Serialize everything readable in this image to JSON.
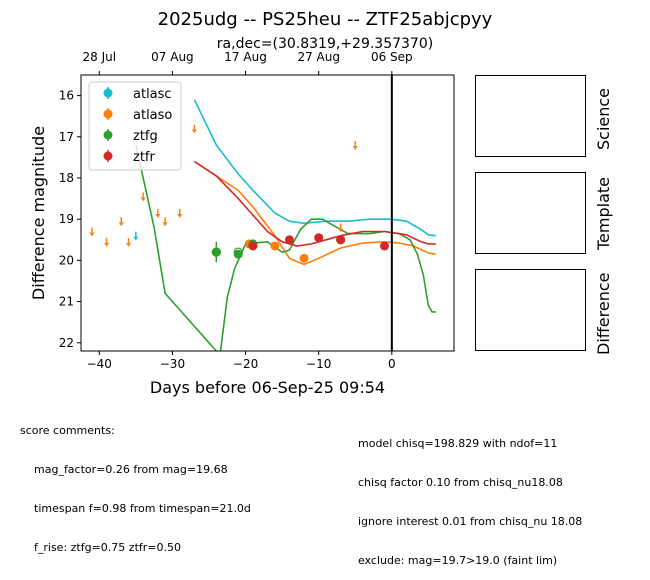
{
  "chart_data": {
    "type": "scatter",
    "title": "2025udg -- PS25heu -- ZTF25abjcpyy",
    "subtitle": "ra,dec=(30.8319,+29.357370)",
    "xlabel": "Days before 06-Sep-25 09:54",
    "ylabel": "Difference magnitude",
    "xlim": [
      -42.5,
      8.5
    ],
    "ylim": [
      22.2,
      15.5
    ],
    "y_inverted": true,
    "xticks": [
      -40,
      -30,
      -20,
      -10,
      0
    ],
    "xtick_labels": [
      "−40",
      "−30",
      "−20",
      "−10",
      "0"
    ],
    "yticks": [
      16,
      17,
      18,
      19,
      20,
      21,
      22
    ],
    "top_axis_ticks": [
      -40,
      -30,
      -20,
      -10,
      0
    ],
    "top_axis_labels": [
      "28 Jul",
      "07 Aug",
      "17 Aug",
      "27 Aug",
      "06 Sep"
    ],
    "vline_x": 0,
    "legend_position": "upper-left",
    "legend": [
      {
        "name": "atlasc",
        "color": "#17becf"
      },
      {
        "name": "atlaso",
        "color": "#ff7f0e"
      },
      {
        "name": "ztfg",
        "color": "#2ca02c"
      },
      {
        "name": "ztfr",
        "color": "#d62728"
      }
    ],
    "series": [
      {
        "name": "atlasc",
        "color": "#17becf",
        "points": [],
        "upper_limits": [
          [
            -35,
            19.4
          ]
        ],
        "model": [
          [
            -27,
            16.1
          ],
          [
            -24,
            17.2
          ],
          [
            -21,
            17.9
          ],
          [
            -19,
            18.3
          ],
          [
            -16,
            18.85
          ],
          [
            -14,
            19.05
          ],
          [
            -12,
            19.1
          ],
          [
            -9,
            19.05
          ],
          [
            -6,
            19.05
          ],
          [
            -3,
            19.0
          ],
          [
            0,
            19.0
          ],
          [
            2,
            19.05
          ],
          [
            4,
            19.25
          ],
          [
            5,
            19.38
          ],
          [
            6,
            19.4
          ]
        ]
      },
      {
        "name": "atlaso",
        "color": "#ff7f0e",
        "points": [
          [
            -19.5,
            19.6,
            0.05
          ],
          [
            -16,
            19.65,
            0.05
          ],
          [
            -12,
            19.95,
            0.05
          ],
          [
            -7,
            19.5,
            0.05
          ]
        ],
        "upper_limits": [
          [
            -41,
            19.3
          ],
          [
            -39,
            19.55
          ],
          [
            -37,
            19.05
          ],
          [
            -36,
            19.55
          ],
          [
            -34,
            18.45
          ],
          [
            -32,
            18.85
          ],
          [
            -31,
            19.05
          ],
          [
            -29,
            18.85
          ],
          [
            -27,
            16.8
          ],
          [
            -7,
            19.2
          ],
          [
            -5,
            17.2
          ]
        ],
        "model": [
          [
            -27,
            17.6
          ],
          [
            -24,
            17.95
          ],
          [
            -21,
            18.3
          ],
          [
            -19,
            18.7
          ],
          [
            -16,
            19.4
          ],
          [
            -14,
            19.95
          ],
          [
            -12,
            20.1
          ],
          [
            -10,
            19.95
          ],
          [
            -7,
            19.7
          ],
          [
            -4,
            19.58
          ],
          [
            -1,
            19.55
          ],
          [
            1,
            19.58
          ],
          [
            3,
            19.65
          ],
          [
            5,
            19.82
          ],
          [
            6,
            19.85
          ]
        ]
      },
      {
        "name": "ztfg",
        "color": "#2ca02c",
        "points": [
          [
            -24,
            19.8,
            0.25
          ],
          [
            -21,
            19.85,
            0.1
          ],
          [
            -19,
            19.6,
            0.1
          ],
          [
            -7,
            19.5,
            0.1
          ]
        ],
        "open_points": [
          [
            -24,
            19.8
          ],
          [
            -21,
            19.8
          ]
        ],
        "upper_limits": [],
        "model": [
          [
            -35,
            17.2
          ],
          [
            -32.5,
            19.2
          ],
          [
            -31,
            20.8
          ],
          [
            -28,
            21.4
          ],
          [
            -25,
            22.0
          ],
          [
            -23.5,
            22.3
          ],
          [
            -22.5,
            20.9
          ],
          [
            -21.5,
            20.2
          ],
          [
            -20,
            19.6
          ],
          [
            -17,
            19.55
          ],
          [
            -15,
            19.8
          ],
          [
            -14,
            19.75
          ],
          [
            -12.5,
            19.25
          ],
          [
            -11,
            19.0
          ],
          [
            -9.5,
            19.0
          ],
          [
            -8,
            19.15
          ],
          [
            -6,
            19.35
          ],
          [
            -3,
            19.35
          ],
          [
            -1,
            19.3
          ],
          [
            1,
            19.35
          ],
          [
            2.5,
            19.5
          ],
          [
            3.5,
            19.85
          ],
          [
            4.3,
            20.35
          ],
          [
            5,
            21.1
          ],
          [
            5.5,
            21.25
          ],
          [
            6,
            21.25
          ]
        ]
      },
      {
        "name": "ztfr",
        "color": "#d62728",
        "points": [
          [
            -19,
            19.65,
            0.1
          ],
          [
            -14,
            19.5,
            0.1
          ],
          [
            -10,
            19.45,
            0.1
          ],
          [
            -7,
            19.5,
            0.1
          ],
          [
            -1,
            19.65,
            0.1
          ]
        ],
        "upper_limits": [],
        "model": [
          [
            -27,
            17.6
          ],
          [
            -24,
            17.95
          ],
          [
            -21,
            18.5
          ],
          [
            -19,
            18.9
          ],
          [
            -17,
            19.3
          ],
          [
            -15,
            19.55
          ],
          [
            -13,
            19.65
          ],
          [
            -11,
            19.6
          ],
          [
            -9,
            19.5
          ],
          [
            -7,
            19.4
          ],
          [
            -4,
            19.3
          ],
          [
            -1,
            19.3
          ],
          [
            2,
            19.38
          ],
          [
            4,
            19.55
          ],
          [
            5,
            19.6
          ],
          [
            6,
            19.6
          ]
        ]
      }
    ]
  },
  "panels": {
    "science_label": "Science",
    "template_label": "Template",
    "difference_label": "Difference"
  },
  "comments": {
    "left_header": "score comments:",
    "left_lines": [
      "mag_factor=0.26 from mag=19.68",
      "timespan f=0.98 from timespan=21.0d",
      "f_rise: ztfg=0.75 ztfr=0.50"
    ],
    "right_lines": [
      "model chisq=198.829 with ndof=11",
      "chisq factor 0.10 from chisq_nu18.08",
      "ignore interest 0.01 from chisq_nu 18.08",
      "exclude: mag=19.7>19.0 (faint lim)"
    ]
  }
}
